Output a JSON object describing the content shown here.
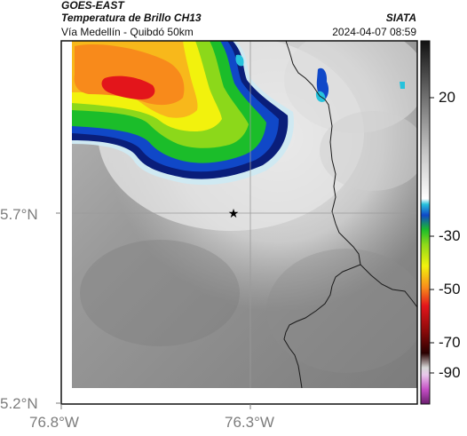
{
  "header": {
    "satellite": "GOES-EAST",
    "product": "Temperatura de Brillo CH13",
    "route": "Vía Medellín - Quibdó 50km",
    "source": "SIATA",
    "timestamp": "2024-04-07 08:59"
  },
  "map": {
    "lat_ticks": [
      "5.7°N",
      "5.2°N"
    ],
    "lon_ticks": [
      "76.8°W",
      "76.3°W"
    ],
    "marker": "star-marker"
  },
  "colorbar": {
    "ticks": [
      "20",
      "-30",
      "-50",
      "-70",
      "-90"
    ]
  },
  "colors": {
    "cold_red": "#e3151b",
    "orange": "#f88a1b",
    "yellow": "#f2f20d",
    "green": "#1bbd2a",
    "blue": "#1048c8",
    "navy": "#0a1e7a",
    "cyan": "#26c2dc",
    "background_gray": "#8a8a8a"
  }
}
